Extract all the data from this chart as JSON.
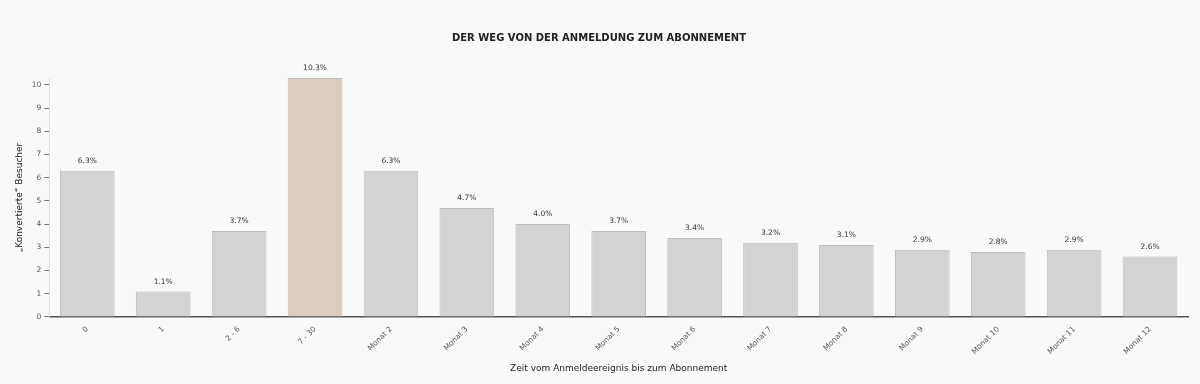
{
  "chart_data": {
    "type": "bar",
    "title": "DER WEG VON DER ANMELDUNG ZUM ABONNEMENT",
    "xlabel": "Zeit vom Anmeldeereignis bis zum Abonnement",
    "ylabel": "„Konvertierte“ Besucher",
    "categories": [
      "0",
      "1",
      "2 - 6",
      "7 - 30",
      "Monat 2",
      "Monat 3",
      "Monat 4",
      "Monat 5",
      "Monat 6",
      "Monat 7",
      "Monat 8",
      "Monat 9",
      "Monat 10",
      "Monat 11",
      "Monat 12"
    ],
    "values": [
      6.3,
      1.1,
      3.7,
      10.3,
      6.3,
      4.7,
      4.0,
      3.7,
      3.4,
      3.2,
      3.1,
      2.9,
      2.8,
      2.9,
      2.6
    ],
    "colors": [
      "#d3d3d3",
      "#d3d3d3",
      "#d3d3d3",
      "#dccbbf",
      "#d3d3d3",
      "#d3d3d3",
      "#d3d3d3",
      "#d3d3d3",
      "#d3d3d3",
      "#d3d3d3",
      "#d3d3d3",
      "#d3d3d3",
      "#d3d3d3",
      "#d3d3d3",
      "#d3d3d3"
    ],
    "value_labels": [
      "6.3%",
      "1.1%",
      "3.7%",
      "10.3%",
      "6.3%",
      "4.7%",
      "4.0%",
      "3.7%",
      "3.4%",
      "3.2%",
      "3.1%",
      "2.9%",
      "2.8%",
      "2.9%",
      "2.6%"
    ],
    "ylim": [
      0,
      10.3
    ],
    "yticks": [
      0,
      1,
      2,
      3,
      4,
      5,
      6,
      7,
      8,
      9,
      10
    ],
    "grid": false,
    "legend": false
  }
}
